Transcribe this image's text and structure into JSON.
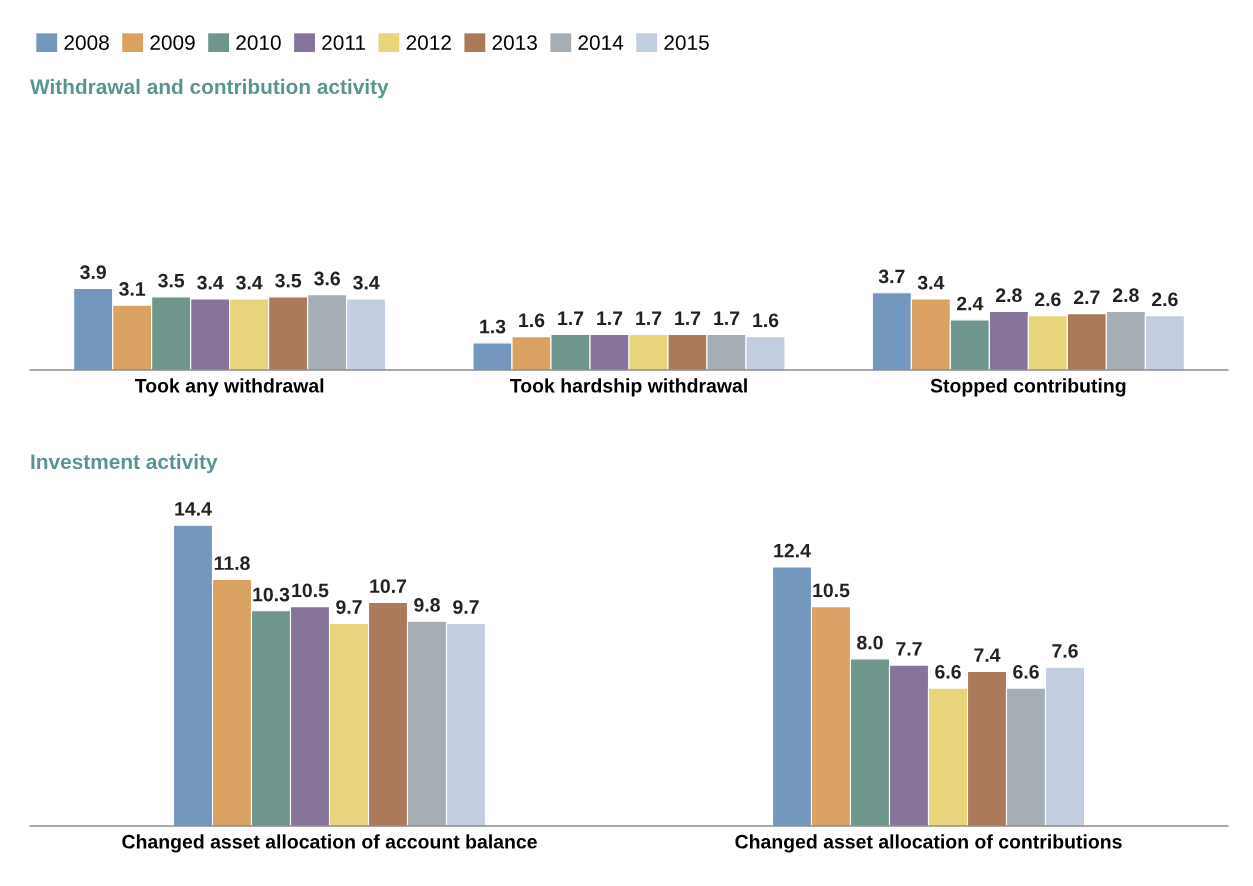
{
  "chart_data": [
    {
      "type": "bar",
      "title": "Withdrawal and contribution activity",
      "categories": [
        "Took any withdrawal",
        "Took hardship withdrawal",
        "Stopped contributing"
      ],
      "tick_labels": "x",
      "grid": false,
      "legend": "top left",
      "series": [
        {
          "name": "2008",
          "color": "#7397bd",
          "values": [
            3.9,
            1.3,
            3.7
          ],
          "value_labels": [
            "3.9",
            "1.3",
            "3.7"
          ]
        },
        {
          "name": "2009",
          "color": "#d9a262",
          "values": [
            3.1,
            1.6,
            3.4
          ],
          "value_labels": [
            "3.1",
            "1.6",
            "3.4"
          ]
        },
        {
          "name": "2010",
          "color": "#6f968c",
          "values": [
            3.5,
            1.7,
            2.4
          ],
          "value_labels": [
            "3.5",
            "1.7",
            "2.4"
          ]
        },
        {
          "name": "2011",
          "color": "#86749a",
          "values": [
            3.4,
            1.7,
            2.8
          ],
          "value_labels": [
            "3.4",
            "1.7",
            "2.8"
          ]
        },
        {
          "name": "2012",
          "color": "#e8d47a",
          "values": [
            3.4,
            1.7,
            2.6
          ],
          "value_labels": [
            "3.4",
            "1.7",
            "2.6"
          ]
        },
        {
          "name": "2013",
          "color": "#ab7a5b",
          "values": [
            3.5,
            1.7,
            2.7
          ],
          "value_labels": [
            "3.5",
            "1.7",
            "2.7"
          ]
        },
        {
          "name": "2014",
          "color": "#a5adb5",
          "values": [
            3.6,
            1.7,
            2.8
          ],
          "value_labels": [
            "3.6",
            "1.7",
            "2.8"
          ]
        },
        {
          "name": "2015",
          "color": "#c2cde0",
          "values": [
            3.4,
            1.6,
            2.6
          ],
          "value_labels": [
            "3.4",
            "1.6",
            "2.6"
          ]
        }
      ]
    },
    {
      "type": "bar",
      "title": "Investment activity",
      "categories": [
        "Changed asset allocation of account balance",
        "Changed asset allocation of contributions"
      ],
      "tick_labels": "x",
      "grid": false,
      "series": [
        {
          "name": "2008",
          "color": "#7397bd",
          "values": [
            14.4,
            12.4
          ],
          "value_labels": [
            "14.4",
            "12.4"
          ]
        },
        {
          "name": "2009",
          "color": "#d9a262",
          "values": [
            11.8,
            10.5
          ],
          "value_labels": [
            "11.8",
            "10.5"
          ]
        },
        {
          "name": "2010",
          "color": "#6f968c",
          "values": [
            10.3,
            8.0
          ],
          "value_labels": [
            "10.3",
            "8.0"
          ]
        },
        {
          "name": "2011",
          "color": "#86749a",
          "values": [
            10.5,
            7.7
          ],
          "value_labels": [
            "10.5",
            "7.7"
          ]
        },
        {
          "name": "2012",
          "color": "#e8d47a",
          "values": [
            9.7,
            6.6
          ],
          "value_labels": [
            "9.7",
            "6.6"
          ]
        },
        {
          "name": "2013",
          "color": "#ab7a5b",
          "values": [
            10.7,
            7.4
          ],
          "value_labels": [
            "10.7",
            "7.4"
          ]
        },
        {
          "name": "2014",
          "color": "#a5adb5",
          "values": [
            9.8,
            6.6
          ],
          "value_labels": [
            "9.8",
            "6.6"
          ]
        },
        {
          "name": "2015",
          "color": "#c2cde0",
          "values": [
            9.7,
            7.6
          ],
          "value_labels": [
            "9.7",
            "7.6"
          ]
        }
      ]
    }
  ]
}
